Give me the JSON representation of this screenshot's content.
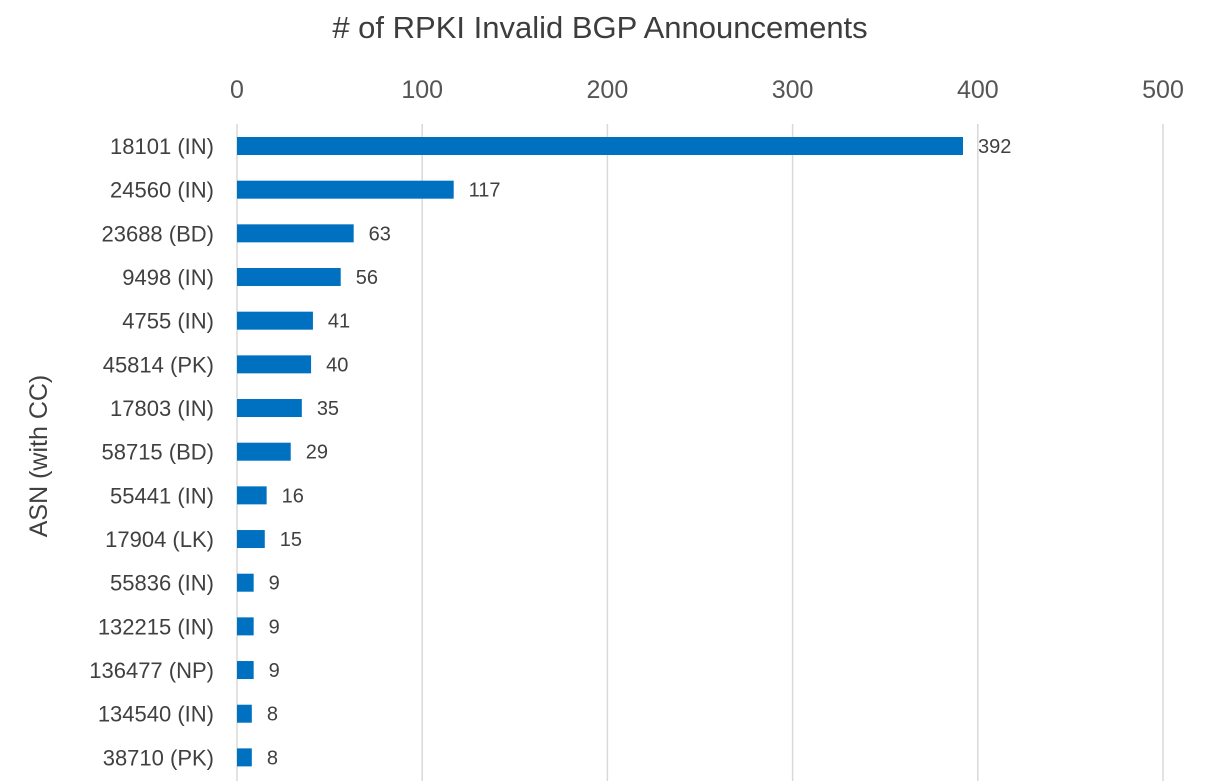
{
  "chart_data": {
    "type": "bar",
    "orientation": "horizontal",
    "title": "# of RPKI Invalid BGP Announcements",
    "ylabel": "ASN (with CC)",
    "xlabel": "",
    "xlim": [
      0,
      500
    ],
    "x_ticks": [
      "0",
      "100",
      "200",
      "300",
      "400",
      "500"
    ],
    "x_axis_position": "top",
    "grid": true,
    "legend": "none",
    "bar_color": "#0070c0",
    "categories": [
      "18101 (IN)",
      "24560 (IN)",
      "23688 (BD)",
      "9498 (IN)",
      "4755 (IN)",
      "45814 (PK)",
      "17803 (IN)",
      "58715 (BD)",
      "55441 (IN)",
      "17904 (LK)",
      "55836 (IN)",
      "132215 (IN)",
      "136477 (NP)",
      "134540 (IN)",
      "38710 (PK)"
    ],
    "values": [
      392,
      117,
      63,
      56,
      41,
      40,
      35,
      29,
      16,
      15,
      9,
      9,
      9,
      8,
      8
    ]
  }
}
